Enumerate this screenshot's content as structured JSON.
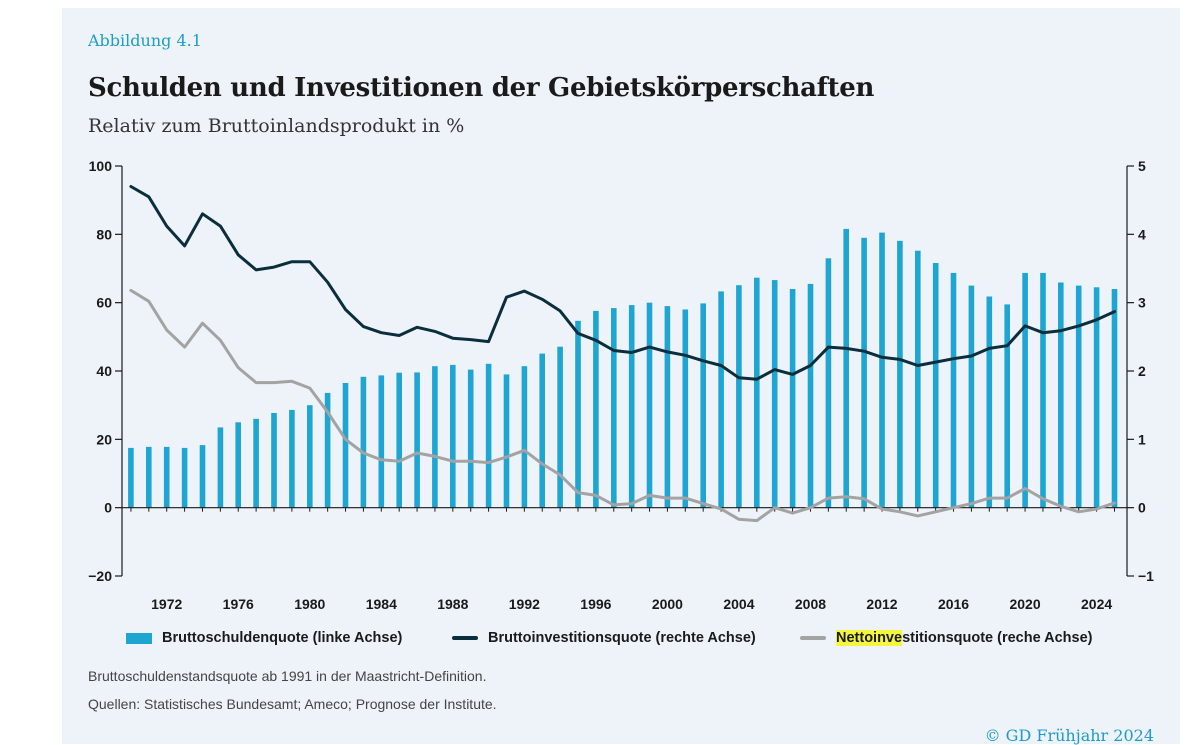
{
  "figure_label": "Abbildung 4.1",
  "title": "Schulden und Investitionen der Gebietskörperschaften",
  "subtitle": "Relativ zum Bruttoinlandsprodukt in %",
  "note": "Bruttoschuldenstandsquote ab 1991 in der Maastricht-Definition.",
  "sources": "Quellen: Statistisches Bundesamt; Ameco; Prognose der Institute.",
  "copyright": "© GD Frühjahr 2024",
  "legend": {
    "bar_label": "Bruttoschuldenquote (linke Achse)",
    "gross_label": "Bruttoinvestitionsquote (rechte Achse)",
    "net_label_highlight": "Nettoinve",
    "net_label_rest": "stitionsquote (reche Achse)"
  },
  "colors": {
    "bar": "#1ea5d2",
    "gross": "#0b2e3d",
    "net": "#a3a3a3",
    "highlight": "#f4f53d",
    "accent": "#1d9dc8"
  },
  "chart_data": {
    "type": "bar+line",
    "x": [
      1970,
      1971,
      1972,
      1973,
      1974,
      1975,
      1976,
      1977,
      1978,
      1979,
      1980,
      1981,
      1982,
      1983,
      1984,
      1985,
      1986,
      1987,
      1988,
      1989,
      1990,
      1991,
      1992,
      1993,
      1994,
      1995,
      1996,
      1997,
      1998,
      1999,
      2000,
      2001,
      2002,
      2003,
      2004,
      2005,
      2006,
      2007,
      2008,
      2009,
      2010,
      2011,
      2012,
      2013,
      2014,
      2015,
      2016,
      2017,
      2018,
      2019,
      2020,
      2021,
      2022,
      2023,
      2024,
      2025
    ],
    "x_tick_labels": [
      "1972",
      "1976",
      "1980",
      "1984",
      "1988",
      "1992",
      "1996",
      "2000",
      "2004",
      "2008",
      "2012",
      "2016",
      "2020",
      "2024"
    ],
    "left_axis": {
      "range": [
        -20,
        100
      ],
      "ticks": [
        -20,
        0,
        20,
        40,
        60,
        80,
        100
      ],
      "tick_labels": [
        "−20",
        "0",
        "20",
        "40",
        "60",
        "80",
        "100"
      ]
    },
    "right_axis": {
      "range": [
        -1,
        5
      ],
      "ticks": [
        -1,
        0,
        1,
        2,
        3,
        4,
        5
      ],
      "tick_labels": [
        "−1",
        "0",
        "1",
        "2",
        "3",
        "4",
        "5"
      ]
    },
    "grid": false,
    "series": [
      {
        "name": "Bruttoschuldenquote (linke Achse)",
        "kind": "bar",
        "axis": "left",
        "values": [
          17.5,
          17.8,
          17.8,
          17.5,
          18.3,
          23.5,
          25,
          26,
          27.7,
          28.6,
          30,
          33.6,
          36.5,
          38.3,
          38.7,
          39.5,
          39.6,
          41.4,
          41.8,
          40.4,
          42.1,
          39,
          41.4,
          45.1,
          47.1,
          54.7,
          57.6,
          58.4,
          59.3,
          60,
          59,
          58,
          59.8,
          63.3,
          65.1,
          67.3,
          66.6,
          64,
          65.5,
          73,
          81.6,
          79,
          80.5,
          78.1,
          75.2,
          71.6,
          68.7,
          65,
          61.8,
          59.5,
          68.7,
          68.7,
          65.9,
          65,
          64.5,
          64
        ]
      },
      {
        "name": "Bruttoinvestitionsquote (rechte Achse)",
        "kind": "line",
        "axis": "right",
        "values": [
          4.7,
          4.55,
          4.12,
          3.83,
          4.3,
          4.12,
          3.7,
          3.48,
          3.52,
          3.6,
          3.6,
          3.3,
          2.9,
          2.65,
          2.56,
          2.52,
          2.64,
          2.58,
          2.48,
          2.46,
          2.43,
          3.08,
          3.17,
          3.05,
          2.88,
          2.55,
          2.45,
          2.3,
          2.27,
          2.35,
          2.28,
          2.23,
          2.15,
          2.08,
          1.9,
          1.88,
          2.02,
          1.95,
          2.08,
          2.35,
          2.33,
          2.29,
          2.2,
          2.17,
          2.08,
          2.13,
          2.18,
          2.22,
          2.33,
          2.37,
          2.66,
          2.56,
          2.59,
          2.66,
          2.75,
          2.87
        ]
      },
      {
        "name": "Nettoinvestitionsquote (reche Achse)",
        "kind": "line",
        "axis": "right",
        "values": [
          3.18,
          3.02,
          2.6,
          2.35,
          2.7,
          2.45,
          2.05,
          1.83,
          1.83,
          1.85,
          1.75,
          1.4,
          1,
          0.8,
          0.7,
          0.68,
          0.8,
          0.75,
          0.68,
          0.68,
          0.66,
          0.74,
          0.84,
          0.64,
          0.48,
          0.22,
          0.18,
          0.04,
          0.06,
          0.18,
          0.14,
          0.14,
          0.06,
          -0.02,
          -0.17,
          -0.19,
          0,
          -0.08,
          0,
          0.14,
          0.16,
          0.13,
          -0.02,
          -0.06,
          -0.12,
          -0.06,
          0,
          0.06,
          0.14,
          0.14,
          0.28,
          0.13,
          0.02,
          -0.06,
          -0.02,
          0.07
        ]
      }
    ]
  }
}
